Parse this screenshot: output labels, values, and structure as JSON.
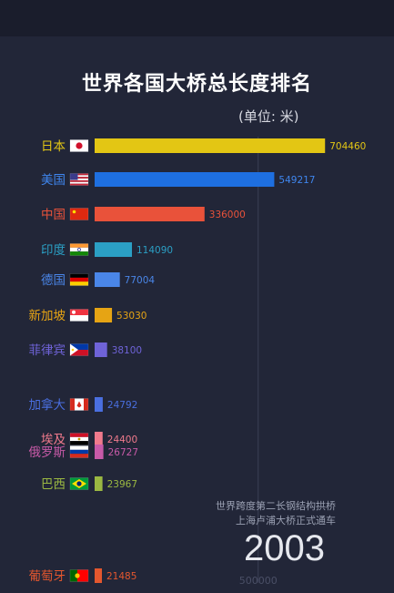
{
  "title": "世界各国大桥总长度排名",
  "unit": "(单位: 米)",
  "year": "2003",
  "note_lines": [
    "世界跨度第二长钢结构拱桥",
    "上海卢浦大桥正式通车"
  ],
  "chart_data": {
    "type": "bar",
    "orientation": "horizontal",
    "title": "世界各国大桥总长度排名",
    "ylabel": "",
    "xlabel": "",
    "xlim": [
      0,
      740000
    ],
    "gridlines": [
      500000
    ],
    "gridline_labels": [
      "500000"
    ],
    "bars": [
      {
        "country": "日本",
        "value": 704460,
        "label": "704460",
        "color": "#e3c614",
        "label_color": "#e3c614",
        "flag": "japan"
      },
      {
        "country": "美国",
        "value": 549217,
        "label": "549217",
        "color": "#1e6fe0",
        "label_color": "#3f86ee",
        "flag": "usa"
      },
      {
        "country": "中国",
        "value": 336000,
        "label": "336000",
        "color": "#e9523a",
        "label_color": "#e9523a",
        "flag": "china"
      },
      {
        "country": "印度",
        "value": 114090,
        "label": "114090",
        "color": "#2b9fc4",
        "label_color": "#2b9fc4",
        "flag": "india"
      },
      {
        "country": "德国",
        "value": 77004,
        "label": "77004",
        "color": "#4a86e8",
        "label_color": "#4a86e8",
        "flag": "germany"
      },
      {
        "country": "新加坡",
        "value": 53030,
        "label": "53030",
        "color": "#e6a414",
        "label_color": "#e6a414",
        "flag": "singapore"
      },
      {
        "country": "菲律宾",
        "value": 38100,
        "label": "38100",
        "color": "#6f63d8",
        "label_color": "#6f63d8",
        "flag": "philippines"
      },
      {
        "country": "加拿大",
        "value": 24792,
        "label": "24792",
        "color": "#4a6fe0",
        "label_color": "#4a6fe0",
        "flag": "canada"
      },
      {
        "country": "埃及",
        "value": 24400,
        "label": "24400",
        "color": "#f07a8c",
        "label_color": "#f07a8c",
        "flag": "egypt"
      },
      {
        "country": "俄罗斯",
        "value": 26727,
        "label": "26727",
        "color": "#c85aa8",
        "label_color": "#c85aa8",
        "flag": "russia"
      },
      {
        "country": "巴西",
        "value": 23967,
        "label": "23967",
        "color": "#9bb842",
        "label_color": "#9bb842",
        "flag": "brazil"
      },
      {
        "country": "葡萄牙",
        "value": 21485,
        "label": "21485",
        "color": "#e4572e",
        "label_color": "#e4572e",
        "flag": "portugal"
      }
    ]
  }
}
